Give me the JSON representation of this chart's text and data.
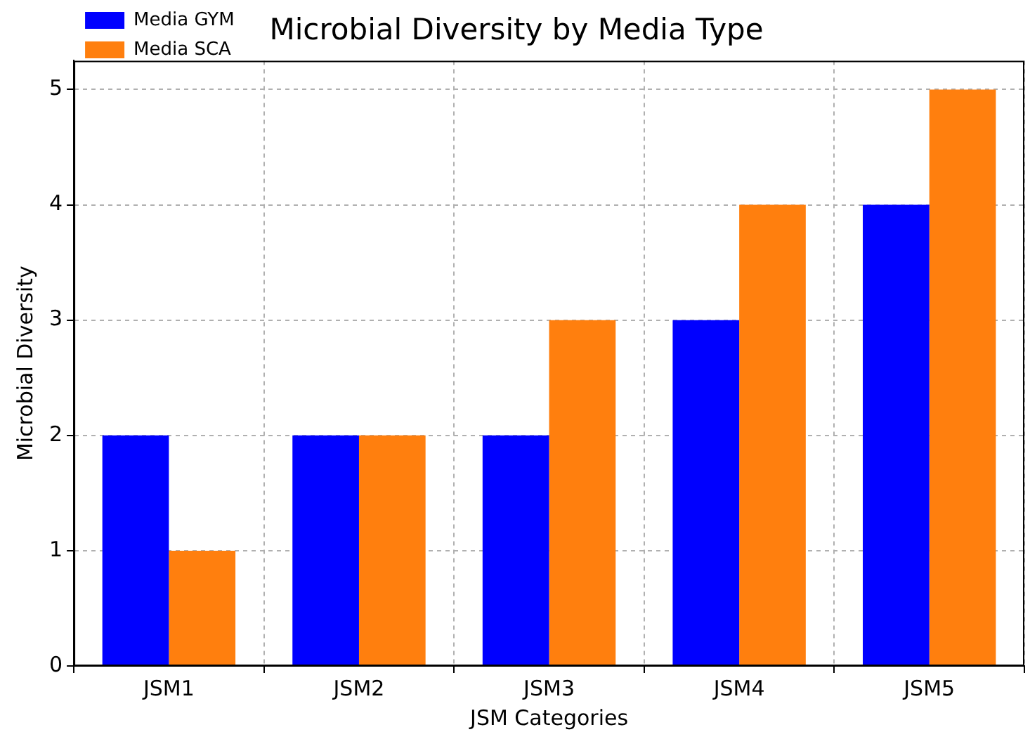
{
  "chart_data": {
    "type": "bar",
    "title": "Microbial Diversity by Media Type",
    "xlabel": "JSM Categories",
    "ylabel": "Microbial Diversity",
    "categories": [
      "JSM1",
      "JSM2",
      "JSM3",
      "JSM4",
      "JSM5"
    ],
    "series": [
      {
        "name": "Media GYM",
        "color": "#0000ff",
        "values": [
          2,
          2,
          2,
          3,
          4
        ]
      },
      {
        "name": "Media SCA",
        "color": "#ff7f0e",
        "values": [
          1,
          2,
          3,
          4,
          5
        ]
      }
    ],
    "ylim": [
      0,
      5.25
    ],
    "yticks": [
      0,
      1,
      2,
      3,
      4,
      5
    ],
    "grid": true,
    "legend": "top left"
  }
}
